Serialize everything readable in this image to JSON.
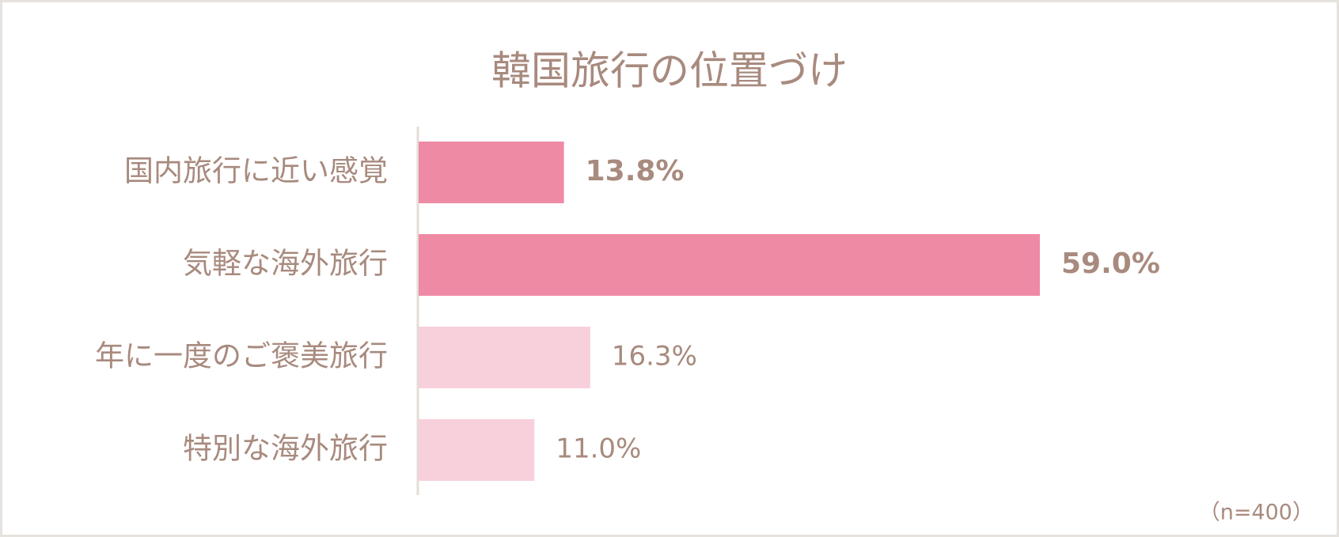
{
  "chart_data": {
    "type": "barh",
    "title": "韓国旅行の位置づけ",
    "categories": [
      "国内旅行に近い感覚",
      "気軽な海外旅行",
      "年に一度のご褒美旅行",
      "特別な海外旅行"
    ],
    "values": [
      13.8,
      59.0,
      16.3,
      11.0
    ],
    "value_labels": [
      "13.8%",
      "59.0%",
      "16.3%",
      "11.0%"
    ],
    "colors": [
      "#ef8aa5",
      "#ef8aa5",
      "#f8d0dc",
      "#f8d0dc"
    ],
    "emphasis": [
      true,
      true,
      false,
      false
    ],
    "note": "（n=400）"
  }
}
